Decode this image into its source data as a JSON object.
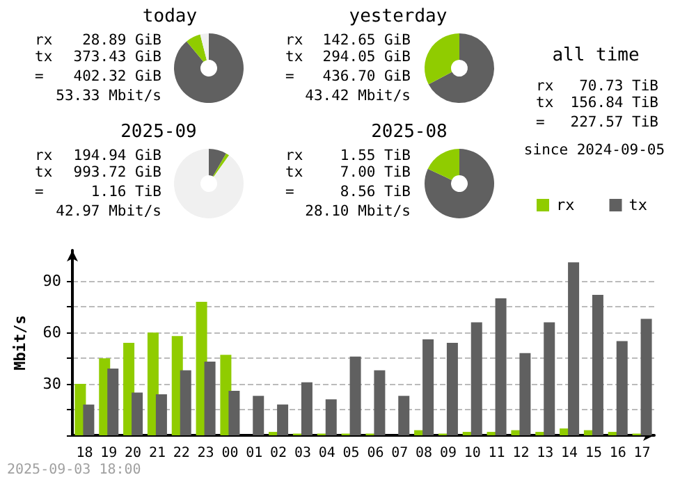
{
  "chart_data": [
    {
      "type": "donut",
      "title": "today",
      "categories": [
        null,
        null,
        null
      ],
      "values": [
        89,
        7,
        4
      ],
      "colors": [
        "#606060",
        "#90cc00",
        "#f0f0f0"
      ],
      "annotations": [
        "rx 28.89 GiB",
        "tx 373.43 GiB",
        "= 402.32 GiB",
        "53.33 Mbit/s"
      ]
    },
    {
      "type": "donut",
      "title": "yesterday",
      "categories": [
        null,
        null
      ],
      "values": [
        67.3,
        32.7
      ],
      "colors": [
        "#606060",
        "#90cc00"
      ],
      "annotations": [
        "rx 142.65 GiB",
        "tx 294.05 GiB",
        "= 436.70 GiB",
        "43.42 Mbit/s"
      ]
    },
    {
      "type": "other",
      "title": "all time",
      "annotations": [
        "rx 70.73 TiB",
        "tx 156.84 TiB",
        "= 227.57 TiB",
        "since 2024-09-05"
      ]
    },
    {
      "type": "donut",
      "title": "2025-09",
      "categories": [
        null,
        null,
        null
      ],
      "values": [
        8.3,
        1.6,
        90.1
      ],
      "colors": [
        "#606060",
        "#90cc00",
        "#f0f0f0"
      ],
      "annotations": [
        "rx 194.94 GiB",
        "tx 993.72 GiB",
        "= 1.16 TiB",
        "42.97 Mbit/s"
      ]
    },
    {
      "type": "donut",
      "title": "2025-08",
      "categories": [
        null,
        null
      ],
      "values": [
        82,
        18
      ],
      "colors": [
        "#606060",
        "#90cc00"
      ],
      "annotations": [
        "rx 1.55 TiB",
        "tx 7.00 TiB",
        "= 8.56 TiB",
        "28.10 Mbit/s"
      ]
    },
    {
      "type": "bar",
      "ylabel": "Mbit/s",
      "categories": [
        "18",
        "19",
        "20",
        "21",
        "22",
        "23",
        "00",
        "01",
        "02",
        "03",
        "04",
        "05",
        "06",
        "07",
        "08",
        "09",
        "10",
        "11",
        "12",
        "13",
        "14",
        "15",
        "16",
        "17"
      ],
      "series": [
        {
          "name": "rx",
          "color": "#90cc00",
          "values": [
            30,
            45,
            54,
            60,
            58,
            78,
            47,
            0,
            2,
            1,
            1,
            1,
            1,
            0,
            3,
            1,
            2,
            2,
            3,
            2,
            4,
            3,
            2,
            1
          ]
        },
        {
          "name": "tx",
          "color": "#606060",
          "values": [
            18,
            39,
            25,
            24,
            38,
            43,
            26,
            23,
            18,
            31,
            21,
            46,
            38,
            23,
            56,
            54,
            66,
            80,
            48,
            66,
            101,
            82,
            55,
            68
          ]
        }
      ],
      "ylim": [
        0,
        108
      ],
      "yticks": [
        {
          "value": 0,
          "label": null
        },
        {
          "value": 15,
          "label": null
        },
        30,
        {
          "value": 45,
          "label": null
        },
        60,
        {
          "value": 75,
          "label": null
        },
        90
      ],
      "grid": "y",
      "line_style": "dashed",
      "legend": "top right",
      "annotations": [
        "2025-09-03 18:00"
      ]
    }
  ]
}
